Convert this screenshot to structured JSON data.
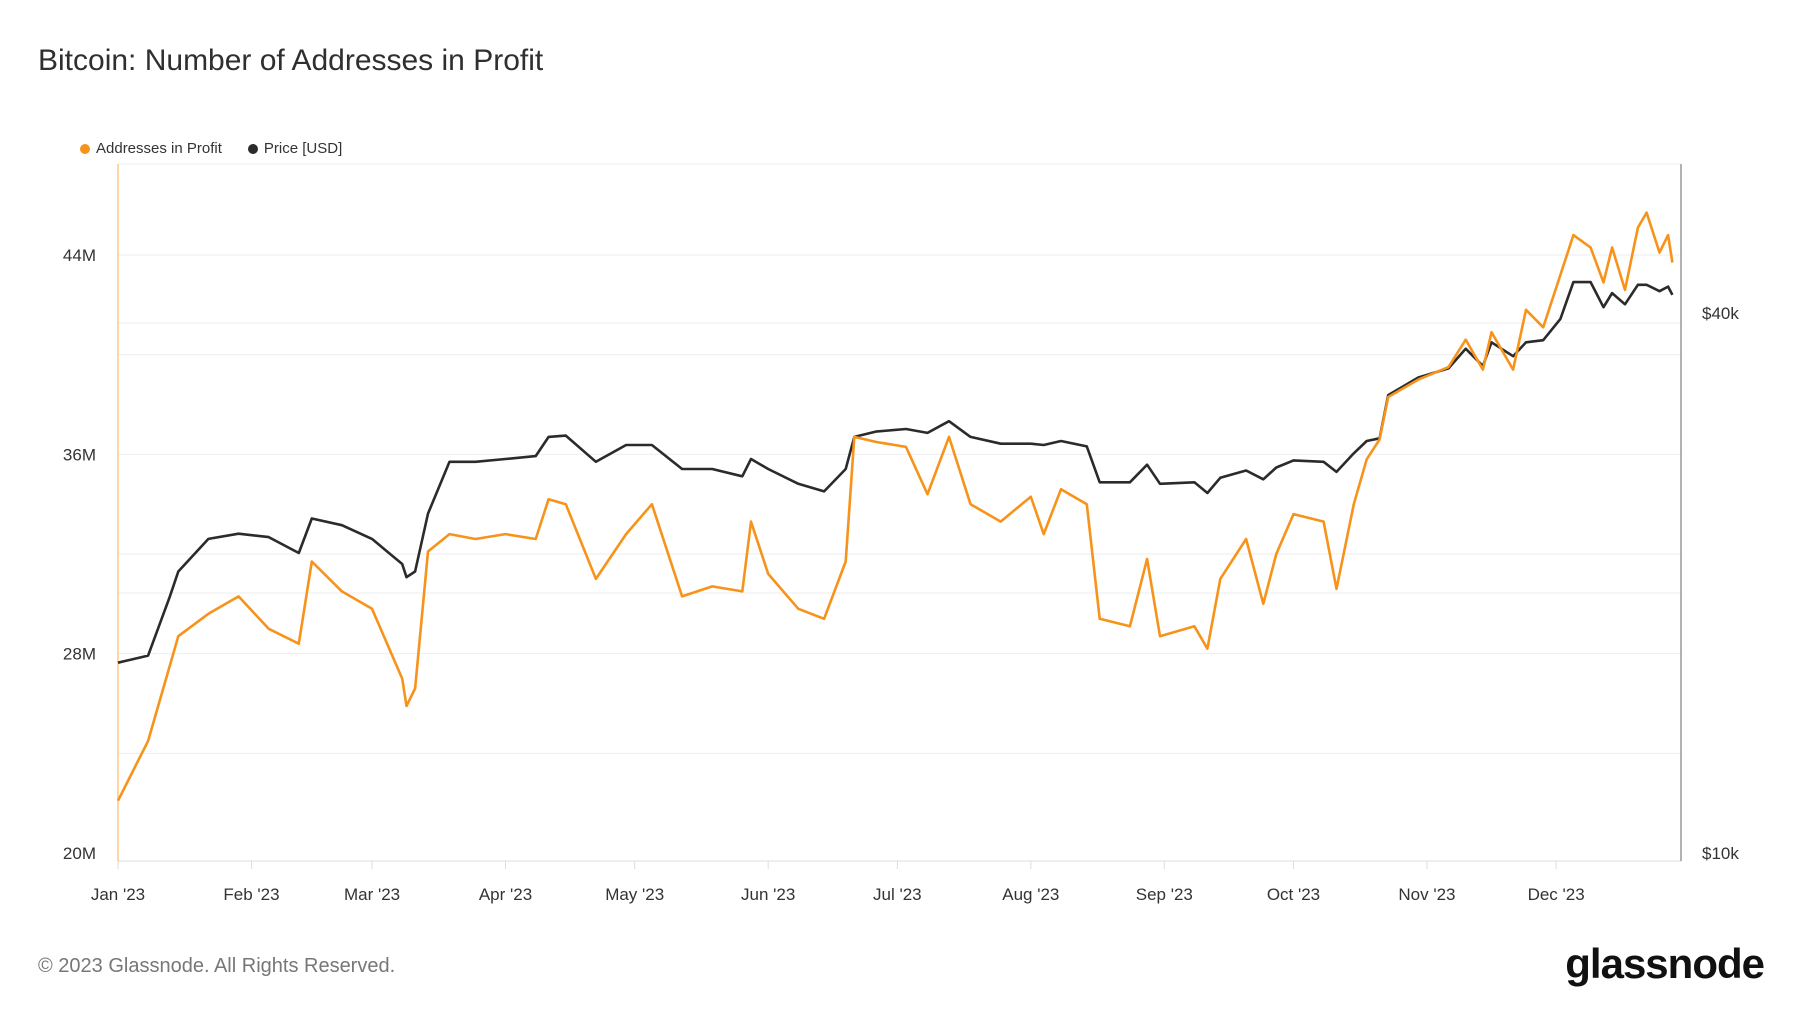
{
  "title": "Bitcoin: Number of Addresses in Profit",
  "footer": "© 2023 Glassnode. All Rights Reserved.",
  "logo": "glassnode",
  "chart_data": {
    "type": "line",
    "title": "Bitcoin: Number of Addresses in Profit",
    "legend_placement": "top-left",
    "grid": true,
    "x_range": [
      "2023-01-01",
      "2023-12-30"
    ],
    "x_ticks": [
      {
        "date": "2023-01-01",
        "label": "Jan '23"
      },
      {
        "date": "2023-02-01",
        "label": "Feb '23"
      },
      {
        "date": "2023-03-01",
        "label": "Mar '23"
      },
      {
        "date": "2023-04-01",
        "label": "Apr '23"
      },
      {
        "date": "2023-05-01",
        "label": "May '23"
      },
      {
        "date": "2023-06-01",
        "label": "Jun '23"
      },
      {
        "date": "2023-07-01",
        "label": "Jul '23"
      },
      {
        "date": "2023-08-01",
        "label": "Aug '23"
      },
      {
        "date": "2023-09-01",
        "label": "Sep '23"
      },
      {
        "date": "2023-10-01",
        "label": "Oct '23"
      },
      {
        "date": "2023-11-01",
        "label": "Nov '23"
      },
      {
        "date": "2023-12-01",
        "label": "Dec '23"
      }
    ],
    "y_left": {
      "scale": "linear",
      "range_millions": [
        20,
        48.5
      ],
      "ticks": [
        {
          "value": 20,
          "label": "20M"
        },
        {
          "value": 28,
          "label": "28M"
        },
        {
          "value": 36,
          "label": "36M"
        },
        {
          "value": 44,
          "label": "44M"
        }
      ]
    },
    "y_right": {
      "scale": "log",
      "range_usd": [
        10000,
        48000
      ],
      "ticks": [
        {
          "value": 10000,
          "label": "$10k"
        },
        {
          "value": 40000,
          "label": "$40k"
        }
      ]
    },
    "x": [
      "2023-01-01",
      "2023-01-08",
      "2023-01-13",
      "2023-01-15",
      "2023-01-22",
      "2023-01-29",
      "2023-02-05",
      "2023-02-12",
      "2023-02-15",
      "2023-02-22",
      "2023-03-01",
      "2023-03-08",
      "2023-03-09",
      "2023-03-11",
      "2023-03-14",
      "2023-03-19",
      "2023-03-25",
      "2023-04-01",
      "2023-04-08",
      "2023-04-11",
      "2023-04-15",
      "2023-04-22",
      "2023-04-29",
      "2023-05-05",
      "2023-05-12",
      "2023-05-19",
      "2023-05-26",
      "2023-05-28",
      "2023-06-01",
      "2023-06-08",
      "2023-06-14",
      "2023-06-19",
      "2023-06-21",
      "2023-06-26",
      "2023-07-03",
      "2023-07-08",
      "2023-07-13",
      "2023-07-18",
      "2023-07-25",
      "2023-08-01",
      "2023-08-04",
      "2023-08-08",
      "2023-08-14",
      "2023-08-17",
      "2023-08-24",
      "2023-08-28",
      "2023-08-31",
      "2023-09-08",
      "2023-09-11",
      "2023-09-14",
      "2023-09-20",
      "2023-09-24",
      "2023-09-27",
      "2023-10-01",
      "2023-10-08",
      "2023-10-11",
      "2023-10-15",
      "2023-10-18",
      "2023-10-21",
      "2023-10-23",
      "2023-10-30",
      "2023-11-06",
      "2023-11-10",
      "2023-11-14",
      "2023-11-16",
      "2023-11-21",
      "2023-11-24",
      "2023-11-28",
      "2023-12-02",
      "2023-12-05",
      "2023-12-09",
      "2023-12-12",
      "2023-12-14",
      "2023-12-17",
      "2023-12-20",
      "2023-12-22",
      "2023-12-25",
      "2023-12-27",
      "2023-12-28"
    ],
    "series": [
      {
        "name": "Addresses in Profit",
        "axis": "left",
        "unit": "millions",
        "color": "#f7931a",
        "values": [
          22.1,
          24.5,
          27.5,
          28.7,
          29.6,
          30.3,
          29.0,
          28.4,
          31.7,
          30.5,
          29.8,
          27.0,
          25.9,
          26.6,
          32.1,
          32.8,
          32.6,
          32.8,
          32.6,
          34.2,
          34.0,
          31.0,
          32.8,
          34.0,
          30.3,
          30.7,
          30.5,
          33.3,
          31.2,
          29.8,
          29.4,
          31.7,
          36.7,
          36.5,
          36.3,
          34.4,
          36.7,
          34.0,
          33.3,
          34.3,
          32.8,
          34.6,
          34.0,
          29.4,
          29.1,
          31.8,
          28.7,
          29.1,
          28.2,
          31.0,
          32.6,
          30.0,
          32.0,
          33.6,
          33.3,
          30.6,
          34.0,
          35.8,
          36.6,
          38.3,
          39.0,
          39.5,
          40.6,
          39.4,
          40.9,
          39.4,
          41.8,
          41.1,
          43.2,
          44.8,
          44.3,
          42.9,
          44.3,
          42.6,
          45.1,
          45.7,
          44.1,
          44.8,
          43.7
        ]
      },
      {
        "name": "Price [USD]",
        "axis": "right",
        "unit": "USD",
        "color": "#2b2b2b",
        "values": [
          16300,
          16600,
          19300,
          20600,
          22400,
          22700,
          22500,
          21600,
          23600,
          23200,
          22400,
          21000,
          20300,
          20600,
          23900,
          27300,
          27300,
          27500,
          27700,
          29100,
          29200,
          27300,
          28500,
          28500,
          26800,
          26800,
          26300,
          27500,
          26800,
          25800,
          25300,
          26800,
          29100,
          29500,
          29700,
          29400,
          30300,
          29100,
          28600,
          28600,
          28500,
          28800,
          28400,
          25900,
          25900,
          27100,
          25800,
          25900,
          25200,
          26200,
          26700,
          26100,
          26900,
          27400,
          27300,
          26600,
          27900,
          28800,
          29000,
          32400,
          33900,
          34700,
          36500,
          34900,
          37100,
          35800,
          37100,
          37300,
          39400,
          43300,
          43300,
          40600,
          42100,
          40900,
          43000,
          43000,
          42300,
          42800,
          41900
        ]
      }
    ]
  }
}
